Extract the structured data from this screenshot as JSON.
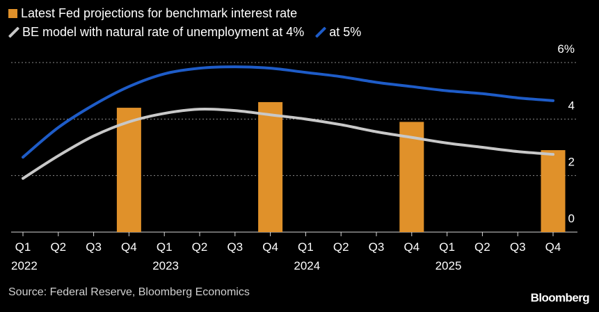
{
  "chart_data": {
    "type": "bar",
    "categories": [
      "Q1",
      "Q2",
      "Q3",
      "Q4",
      "Q1",
      "Q2",
      "Q3",
      "Q4",
      "Q1",
      "Q2",
      "Q3",
      "Q4",
      "Q1",
      "Q2",
      "Q3",
      "Q4"
    ],
    "years": [
      "2022",
      "2023",
      "2024",
      "2025"
    ],
    "series": [
      {
        "name": "Latest Fed projections for benchmark interest rate",
        "type": "bar",
        "color": "#e0912a",
        "values": [
          null,
          null,
          null,
          4.4,
          null,
          null,
          null,
          4.6,
          null,
          null,
          null,
          3.9,
          null,
          null,
          null,
          2.9
        ]
      },
      {
        "name": "BE model with natural rate of unemployment at 4%",
        "type": "line",
        "color": "#c8c8c8",
        "values": [
          1.9,
          2.7,
          3.4,
          3.9,
          4.2,
          4.35,
          4.3,
          4.15,
          4.0,
          3.8,
          3.55,
          3.35,
          3.15,
          3.0,
          2.85,
          2.75
        ]
      },
      {
        "name": "at 5%",
        "type": "line",
        "color": "#1e5cc8",
        "values": [
          2.65,
          3.7,
          4.5,
          5.15,
          5.6,
          5.8,
          5.85,
          5.8,
          5.65,
          5.5,
          5.3,
          5.15,
          5.0,
          4.9,
          4.75,
          4.65
        ]
      }
    ],
    "ylim": [
      0,
      6
    ],
    "yticks": [
      {
        "value": 0,
        "label": "0"
      },
      {
        "value": 2,
        "label": "2"
      },
      {
        "value": 4,
        "label": "4"
      },
      {
        "value": 6,
        "label": "6%"
      }
    ],
    "grid": true,
    "legend_placement": "top-left"
  },
  "footer": {
    "source": "Source: Federal Reserve, Bloomberg Economics",
    "brand": "Bloomberg"
  },
  "colors": {
    "background": "#000000",
    "grid": "#8a8a8a",
    "axis_text": "#ffffff"
  }
}
